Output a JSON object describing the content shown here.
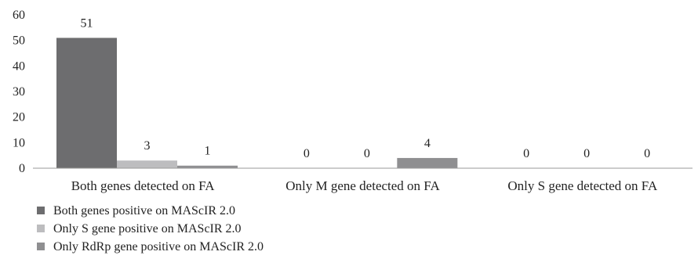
{
  "chart_data": {
    "type": "bar",
    "categories": [
      "Both genes detected on FA",
      "Only M gene detected on FA",
      "Only S gene detected on FA"
    ],
    "series": [
      {
        "name": "Both genes positive on MAScIR 2.0",
        "values": [
          51,
          0,
          0
        ],
        "color": "#6d6d6f"
      },
      {
        "name": "Only S gene positive on MAScIR 2.0",
        "values": [
          3,
          0,
          0
        ],
        "color": "#bdbdbf"
      },
      {
        "name": "Only RdRp gene positive on MAScIR 2.0",
        "values": [
          1,
          4,
          0
        ],
        "color": "#8f8f91"
      }
    ],
    "y_ticks": [
      0,
      10,
      20,
      30,
      40,
      50,
      60
    ],
    "ylim": [
      0,
      60
    ],
    "grid": false,
    "legend_position": "bottom-left",
    "data_labels": true
  }
}
